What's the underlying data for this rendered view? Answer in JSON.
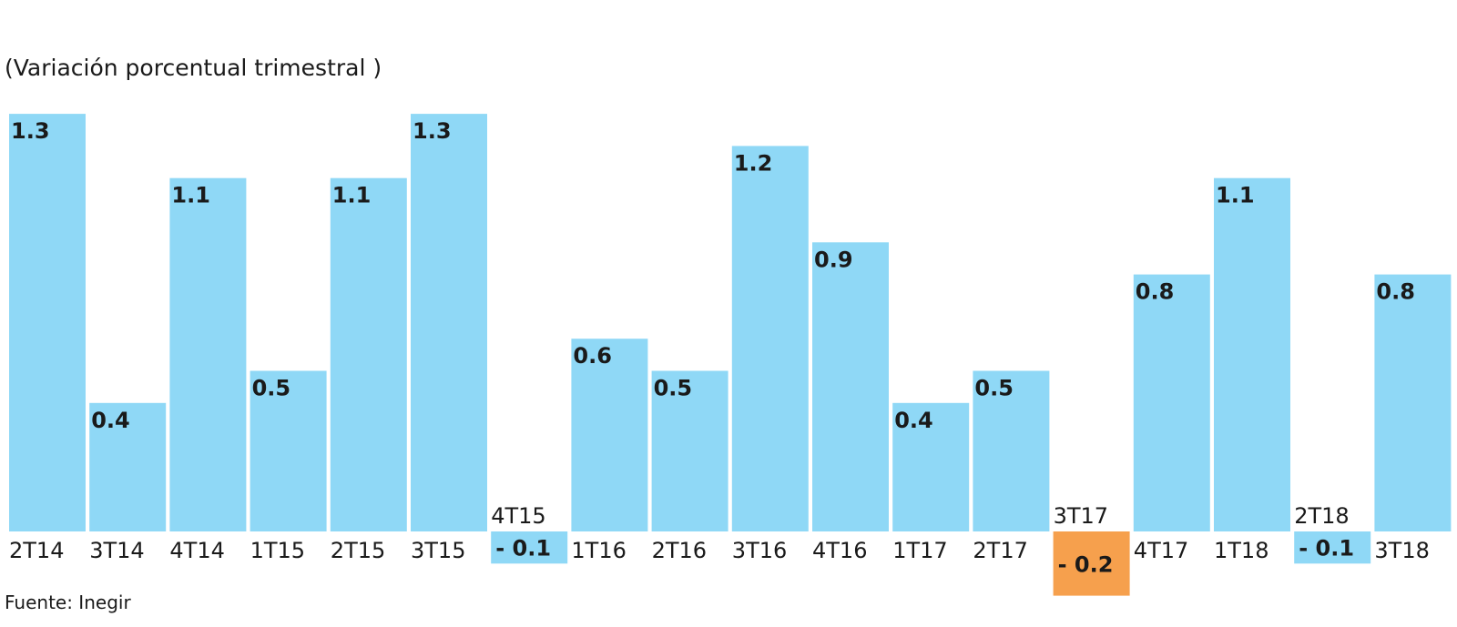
{
  "subtitle": "(Variación porcentual trimestral )",
  "source": "Fuente: Inegir",
  "colors": {
    "bar": "#8fd8f6",
    "highlight": "#f6a04d",
    "text": "#1a1a1a"
  },
  "chart_data": {
    "type": "bar",
    "categories": [
      "2T14",
      "3T14",
      "4T14",
      "1T15",
      "2T15",
      "3T15",
      "4T15",
      "1T16",
      "2T16",
      "3T16",
      "4T16",
      "1T17",
      "2T17",
      "3T17",
      "4T17",
      "1T18",
      "2T18",
      "3T18"
    ],
    "values": [
      1.3,
      0.4,
      1.1,
      0.5,
      1.1,
      1.3,
      -0.1,
      0.6,
      0.5,
      1.2,
      0.9,
      0.4,
      0.5,
      -0.2,
      0.8,
      1.1,
      -0.1,
      0.8
    ],
    "value_labels": [
      "1.3",
      "0.4",
      "1.1",
      "0.5",
      "1.1",
      "1.3",
      "- 0.1",
      "0.6",
      "0.5",
      "1.2",
      "0.9",
      "0.4",
      "0.5",
      "- 0.2",
      "0.8",
      "1.1",
      "- 0.1",
      "0.8"
    ],
    "highlight_category": "3T17",
    "title": "",
    "xlabel": "",
    "ylabel": "",
    "ylim": [
      -0.2,
      1.3
    ],
    "grid": false,
    "legend": "none"
  }
}
